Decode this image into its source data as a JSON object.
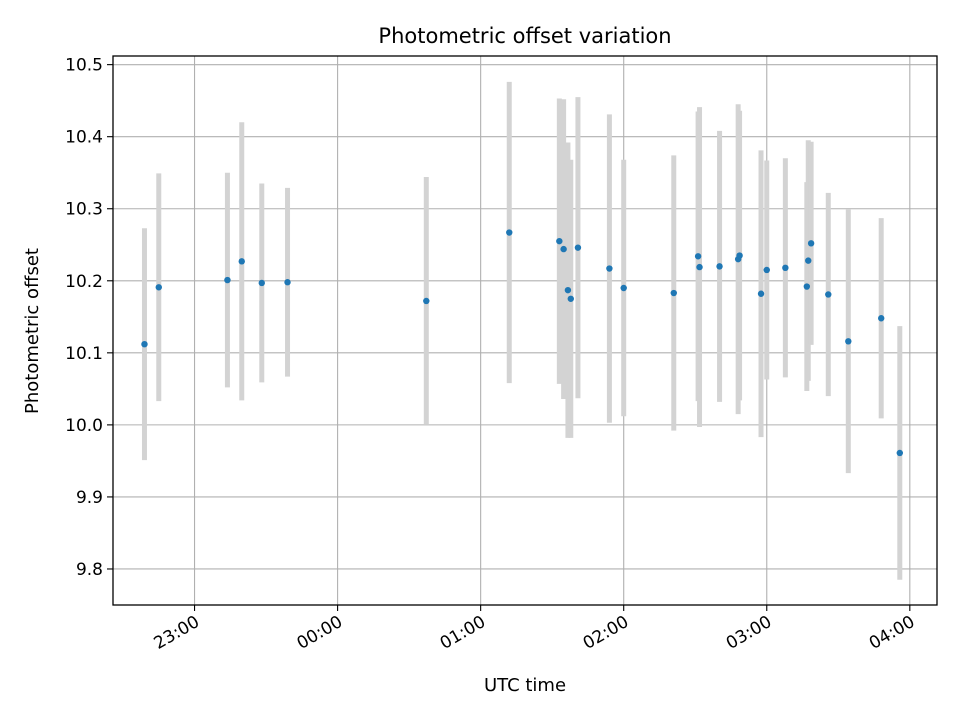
{
  "chart_data": {
    "type": "scatter",
    "title": "Photometric offset variation",
    "xlabel": "UTC time",
    "ylabel": "Photometric offset",
    "x_ticks": [
      "23:00",
      "00:00",
      "01:00",
      "02:00",
      "03:00",
      "04:00"
    ],
    "x_tick_hours": [
      23,
      24,
      25,
      26,
      27,
      28
    ],
    "xlim_hours": [
      22.43,
      28.19
    ],
    "y_ticks": [
      "9.8",
      "9.9",
      "10.0",
      "10.1",
      "10.2",
      "10.3",
      "10.4",
      "10.5"
    ],
    "y_tick_values": [
      9.8,
      9.9,
      10.0,
      10.1,
      10.2,
      10.3,
      10.4,
      10.5
    ],
    "ylim": [
      9.75,
      10.512
    ],
    "grid": true,
    "colors": {
      "point": "#1f77b4",
      "errorbar": "#d3d3d3",
      "grid": "#b0b0b0"
    },
    "points": [
      {
        "t": 22.65,
        "y": 10.112,
        "err": 0.161
      },
      {
        "t": 22.75,
        "y": 10.191,
        "err": 0.158
      },
      {
        "t": 23.23,
        "y": 10.201,
        "err": 0.149
      },
      {
        "t": 23.33,
        "y": 10.227,
        "err": 0.193
      },
      {
        "t": 23.47,
        "y": 10.197,
        "err": 0.138
      },
      {
        "t": 23.65,
        "y": 10.198,
        "err": 0.131
      },
      {
        "t": 24.62,
        "y": 10.172,
        "err": 0.172
      },
      {
        "t": 25.2,
        "y": 10.267,
        "err": 0.209
      },
      {
        "t": 25.55,
        "y": 10.255,
        "err": 0.198
      },
      {
        "t": 25.58,
        "y": 10.244,
        "err": 0.208
      },
      {
        "t": 25.61,
        "y": 10.187,
        "err": 0.205
      },
      {
        "t": 25.63,
        "y": 10.175,
        "err": 0.193
      },
      {
        "t": 25.68,
        "y": 10.246,
        "err": 0.209
      },
      {
        "t": 25.9,
        "y": 10.217,
        "err": 0.214
      },
      {
        "t": 26.0,
        "y": 10.19,
        "err": 0.178
      },
      {
        "t": 26.35,
        "y": 10.183,
        "err": 0.191
      },
      {
        "t": 26.52,
        "y": 10.234,
        "err": 0.201
      },
      {
        "t": 26.53,
        "y": 10.219,
        "err": 0.222
      },
      {
        "t": 26.67,
        "y": 10.22,
        "err": 0.188
      },
      {
        "t": 26.8,
        "y": 10.23,
        "err": 0.215
      },
      {
        "t": 26.81,
        "y": 10.235,
        "err": 0.201
      },
      {
        "t": 26.96,
        "y": 10.182,
        "err": 0.199
      },
      {
        "t": 27.0,
        "y": 10.215,
        "err": 0.152
      },
      {
        "t": 27.13,
        "y": 10.218,
        "err": 0.152
      },
      {
        "t": 27.28,
        "y": 10.192,
        "err": 0.145
      },
      {
        "t": 27.29,
        "y": 10.228,
        "err": 0.167
      },
      {
        "t": 27.31,
        "y": 10.252,
        "err": 0.141
      },
      {
        "t": 27.43,
        "y": 10.181,
        "err": 0.141
      },
      {
        "t": 27.57,
        "y": 10.116,
        "err": 0.183
      },
      {
        "t": 27.8,
        "y": 10.148,
        "err": 0.139
      },
      {
        "t": 27.93,
        "y": 9.961,
        "err": 0.176
      }
    ]
  }
}
